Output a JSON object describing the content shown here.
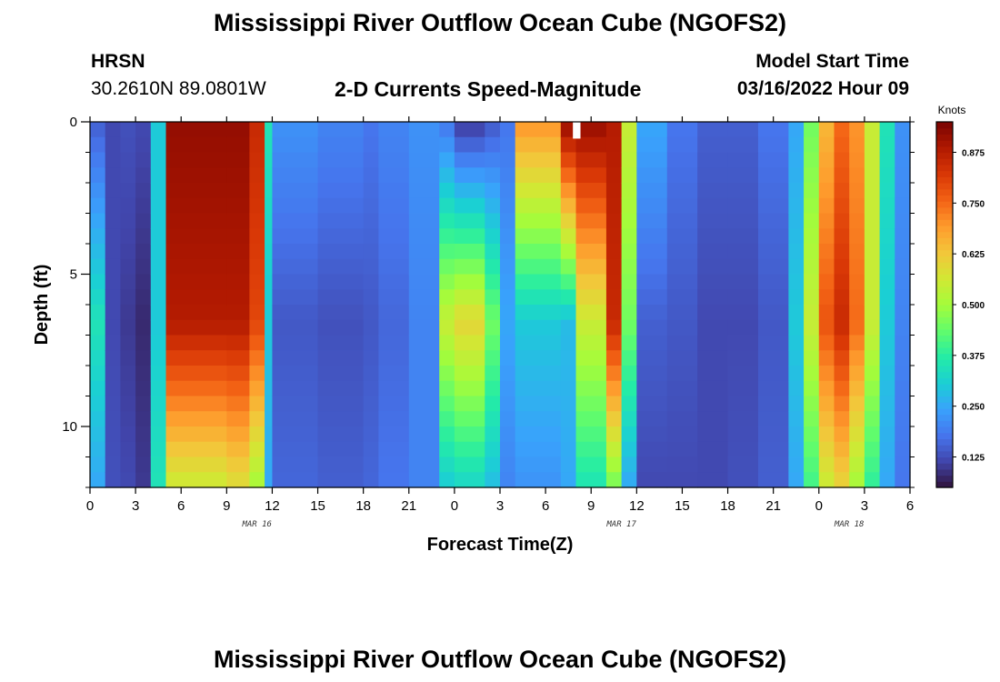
{
  "header": {
    "title": "Mississippi River Outflow Ocean Cube (NGOFS2)",
    "station_name": "HRSN",
    "station_coords": "30.2610N  89.0801W",
    "chart_subtitle": "2-D Currents Speed-Magnitude",
    "model_start_label": "Model Start Time",
    "model_start_value": "03/16/2022 Hour 09"
  },
  "footer": {
    "title": "Mississippi River Outflow Ocean Cube (NGOFS2)"
  },
  "colors": {
    "colormap": [
      "#30123b",
      "#4145ab",
      "#4675ed",
      "#39a2fc",
      "#1bcfd4",
      "#24eca6",
      "#61fc6c",
      "#a4fc3b",
      "#d1e834",
      "#f3c63a",
      "#fe9b2d",
      "#f36315",
      "#d93806",
      "#b11901",
      "#7a0402"
    ]
  },
  "chart_data": {
    "type": "heatmap",
    "title": "2-D Currents Speed-Magnitude",
    "xlabel": "Forecast Time(Z)",
    "ylabel": "Depth (ft)",
    "x_tick_labels": [
      "0",
      "3",
      "6",
      "9",
      "12",
      "15",
      "18",
      "21",
      "0",
      "3",
      "6",
      "9",
      "12",
      "15",
      "18",
      "21",
      "0",
      "3",
      "6"
    ],
    "x_range_hours": [
      0,
      54
    ],
    "day_labels": [
      {
        "label": "MAR 16",
        "hour": 11
      },
      {
        "label": "MAR 17",
        "hour": 35
      },
      {
        "label": "MAR 18",
        "hour": 50
      }
    ],
    "y_range_ft": [
      0,
      12
    ],
    "y_tick_labels": [
      {
        "label": "0",
        "value": 0
      },
      {
        "label": "5",
        "value": 5
      },
      {
        "label": "10",
        "value": 10
      }
    ],
    "colorbar": {
      "label": "Knots",
      "range": [
        0.05,
        0.95
      ],
      "ticks": [
        "0.125",
        "0.250",
        "0.375",
        "0.500",
        "0.625",
        "0.750",
        "0.875"
      ],
      "tick_values": [
        0.125,
        0.25,
        0.375,
        0.5,
        0.625,
        0.75,
        0.875
      ]
    },
    "time_breakpoints_hours": [
      0,
      1,
      2,
      3,
      4,
      5,
      9,
      10.5,
      11.5,
      12,
      15,
      18,
      19,
      21,
      23,
      24,
      26,
      27,
      28,
      31,
      32,
      34,
      35,
      36,
      38,
      40,
      42,
      44,
      46,
      47,
      48,
      49,
      50,
      51,
      52,
      53,
      54
    ],
    "depth_levels_ft": [
      0,
      0.5,
      1,
      1.5,
      2,
      2.5,
      3,
      3.5,
      4,
      4.5,
      5,
      5.5,
      6,
      6.5,
      7,
      7.5,
      8,
      8.5,
      9,
      9.5,
      10,
      10.5,
      11,
      11.5,
      12
    ],
    "speed_knots_surface": [
      0.15,
      0.12,
      0.13,
      0.12,
      0.3,
      0.92,
      0.92,
      0.85,
      0.35,
      0.22,
      0.2,
      0.18,
      0.2,
      0.22,
      0.18,
      0.1,
      0.14,
      0.18,
      0.7,
      0.92,
      0.92,
      0.88,
      0.55,
      0.25,
      0.18,
      0.15,
      0.15,
      0.18,
      0.25,
      0.45,
      0.65,
      0.75,
      0.7,
      0.55,
      0.35,
      0.22,
      0.15
    ],
    "speed_knots_mid": [
      0.35,
      0.12,
      0.1,
      0.08,
      0.3,
      0.88,
      0.88,
      0.8,
      0.3,
      0.14,
      0.13,
      0.14,
      0.16,
      0.2,
      0.55,
      0.6,
      0.45,
      0.25,
      0.3,
      0.28,
      0.55,
      0.85,
      0.45,
      0.15,
      0.14,
      0.12,
      0.12,
      0.14,
      0.3,
      0.55,
      0.78,
      0.85,
      0.75,
      0.55,
      0.3,
      0.2,
      0.15
    ],
    "speed_knots_bottom": [
      0.25,
      0.13,
      0.12,
      0.1,
      0.35,
      0.55,
      0.58,
      0.5,
      0.25,
      0.16,
      0.15,
      0.16,
      0.18,
      0.2,
      0.3,
      0.32,
      0.28,
      0.2,
      0.22,
      0.25,
      0.35,
      0.45,
      0.25,
      0.12,
      0.12,
      0.12,
      0.13,
      0.15,
      0.25,
      0.4,
      0.55,
      0.6,
      0.5,
      0.38,
      0.25,
      0.18,
      0.15
    ]
  }
}
